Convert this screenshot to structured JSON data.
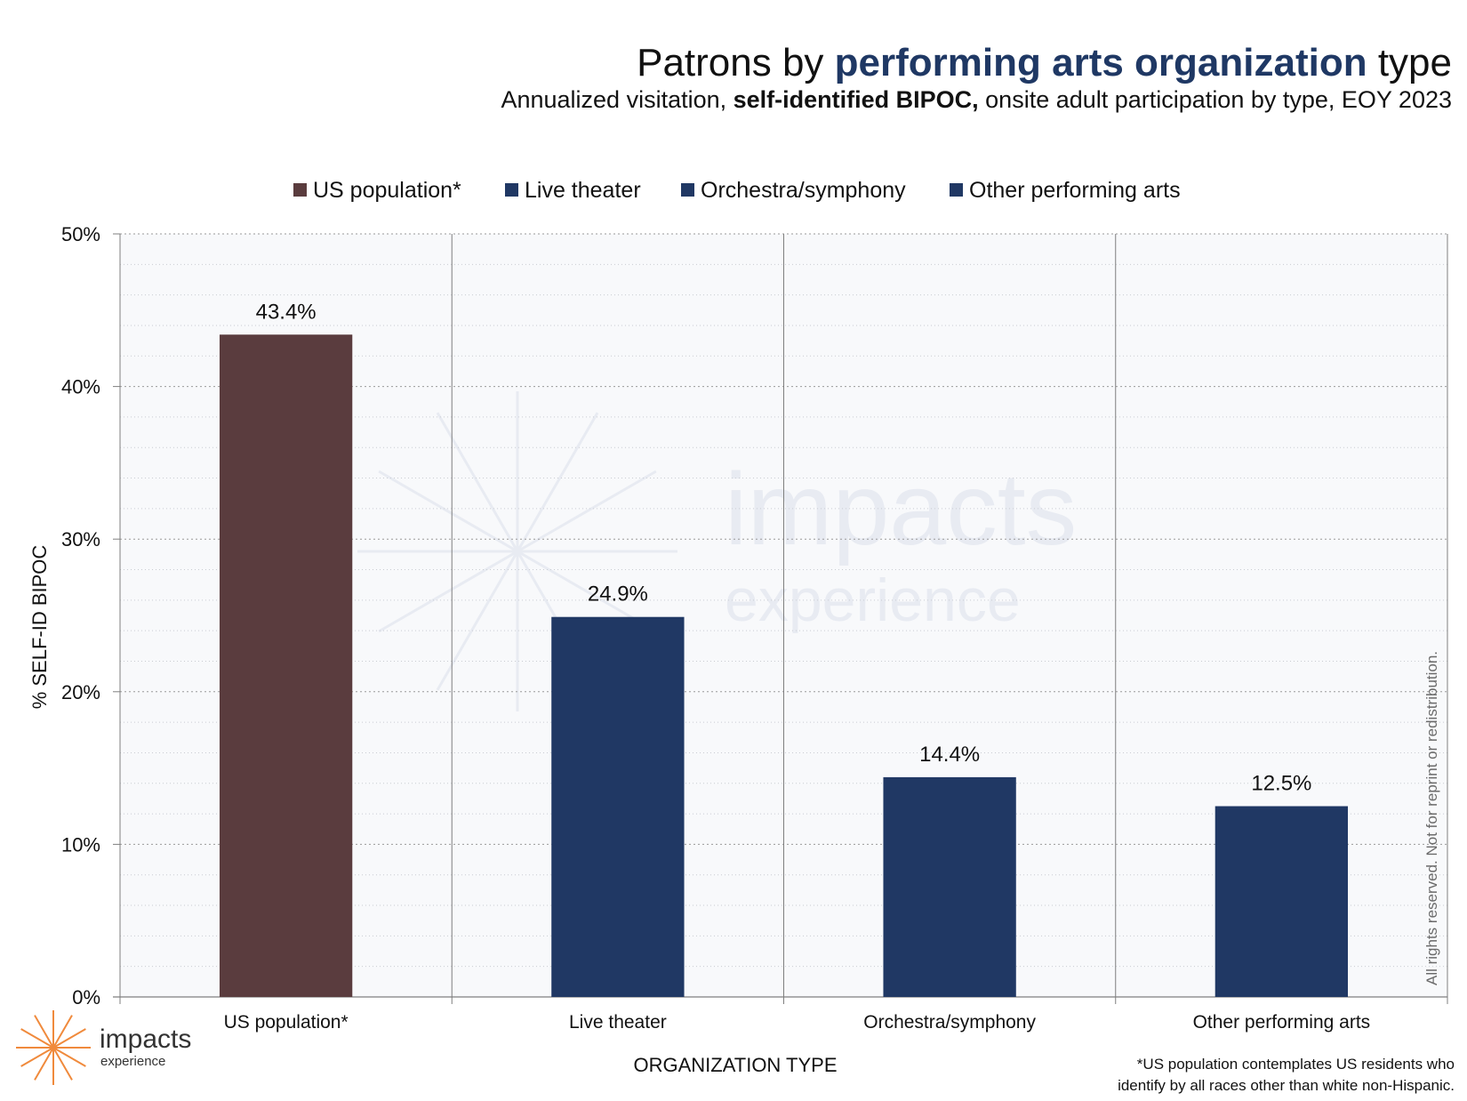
{
  "title": {
    "prefix": "Patrons by ",
    "highlight": "performing arts organization",
    "suffix": " type"
  },
  "subtitle": {
    "prefix": "Annualized visitation, ",
    "bold": "self-identified BIPOC,",
    "suffix": " onsite adult participation by type, EOY 2023"
  },
  "colors": {
    "us_population": "#5a3c3e",
    "performing_arts": "#203864",
    "plot_background": "#f8f9fb",
    "watermark": "#e8ebf2",
    "logo_accent": "#f08a3c"
  },
  "chart_data": {
    "type": "bar",
    "categories": [
      "US population*",
      "Live theater",
      "Orchestra/symphony",
      "Other performing arts"
    ],
    "values": [
      43.4,
      24.9,
      14.4,
      12.5
    ],
    "data_labels": [
      "43.4%",
      "24.9%",
      "14.4%",
      "12.5%"
    ],
    "series": [
      {
        "name": "US population*",
        "color": "#5a3c3e"
      },
      {
        "name": "Live theater",
        "color": "#203864"
      },
      {
        "name": "Orchestra/symphony",
        "color": "#203864"
      },
      {
        "name": "Other performing arts",
        "color": "#203864"
      }
    ],
    "xlabel": "ORGANIZATION TYPE",
    "ylabel": "% SELF-ID BIPOC",
    "ylim": [
      0,
      50
    ],
    "yticks": [
      0,
      10,
      20,
      30,
      40,
      50
    ],
    "ytick_labels": [
      "0%",
      "10%",
      "20%",
      "30%",
      "40%",
      "50%"
    ],
    "legend_position": "top",
    "grid": true
  },
  "footnote": {
    "line1": "*US population contemplates US residents who",
    "line2": "identify by all races other than white non-Hispanic."
  },
  "rights": "All rights reserved. Not for reprint or redistribution.",
  "logo": {
    "name": "impacts",
    "sub": "experience",
    "icon": "starburst-icon"
  },
  "watermark": {
    "name": "impacts",
    "sub": "experience"
  }
}
